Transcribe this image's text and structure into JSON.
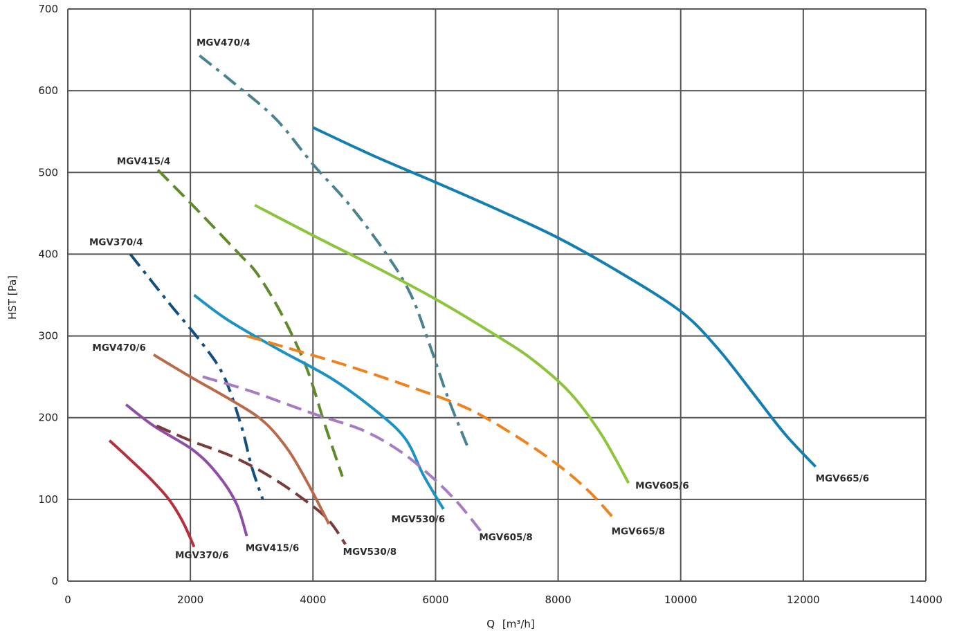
{
  "chart_data": {
    "type": "line",
    "xlabel_prefix": "Q",
    "xlabel_unit": "[m³/h]",
    "ylabel": "HST [Pa]",
    "xlim": [
      0,
      14000
    ],
    "ylim": [
      0,
      700
    ],
    "x_ticks": [
      0,
      2000,
      4000,
      6000,
      8000,
      10000,
      12000,
      14000
    ],
    "y_ticks": [
      0,
      100,
      200,
      300,
      400,
      500,
      600,
      700
    ],
    "grid": true,
    "series": [
      {
        "name": "MGV370/6",
        "color": "#b5303c",
        "dash": "solid",
        "points": [
          [
            680,
            172
          ],
          [
            1000,
            150
          ],
          [
            1350,
            125
          ],
          [
            1650,
            100
          ],
          [
            1880,
            72
          ],
          [
            2060,
            42
          ]
        ]
      },
      {
        "name": "MGV415/6",
        "color": "#8e4ea6",
        "dash": "solid",
        "points": [
          [
            950,
            216
          ],
          [
            1400,
            190
          ],
          [
            2050,
            160
          ],
          [
            2450,
            130
          ],
          [
            2750,
            95
          ],
          [
            2920,
            55
          ]
        ]
      },
      {
        "name": "MGV530/8",
        "color": "#7a3b3b",
        "dash": "dash",
        "points": [
          [
            1450,
            190
          ],
          [
            2000,
            172
          ],
          [
            2700,
            152
          ],
          [
            3300,
            128
          ],
          [
            3850,
            100
          ],
          [
            4250,
            75
          ],
          [
            4530,
            45
          ]
        ]
      },
      {
        "name": "MGV370/4",
        "color": "#134f7d",
        "dash": "dashdot",
        "points": [
          [
            1020,
            400
          ],
          [
            1600,
            345
          ],
          [
            2200,
            290
          ],
          [
            2550,
            250
          ],
          [
            2830,
            190
          ],
          [
            3000,
            140
          ],
          [
            3180,
            100
          ]
        ]
      },
      {
        "name": "MGV470/6",
        "color": "#b86a4b",
        "dash": "solid",
        "points": [
          [
            1400,
            277
          ],
          [
            2000,
            250
          ],
          [
            2700,
            220
          ],
          [
            3200,
            195
          ],
          [
            3600,
            160
          ],
          [
            3950,
            115
          ],
          [
            4260,
            70
          ]
        ]
      },
      {
        "name": "MGV415/4",
        "color": "#5f8a2b",
        "dash": "dash",
        "points": [
          [
            1470,
            503
          ],
          [
            2100,
            455
          ],
          [
            2800,
            400
          ],
          [
            3100,
            375
          ],
          [
            3500,
            325
          ],
          [
            3900,
            260
          ],
          [
            4200,
            190
          ],
          [
            4480,
            128
          ]
        ]
      },
      {
        "name": "MGV530/6",
        "color": "#1c92c2",
        "dash": "solid",
        "points": [
          [
            2060,
            350
          ],
          [
            2600,
            320
          ],
          [
            3400,
            285
          ],
          [
            4300,
            248
          ],
          [
            5000,
            210
          ],
          [
            5500,
            175
          ],
          [
            5800,
            130
          ],
          [
            6130,
            88
          ]
        ]
      },
      {
        "name": "MGV605/8",
        "color": "#a57cc1",
        "dash": "dash",
        "points": [
          [
            2200,
            250
          ],
          [
            3000,
            232
          ],
          [
            4000,
            205
          ],
          [
            4800,
            185
          ],
          [
            5400,
            160
          ],
          [
            5900,
            130
          ],
          [
            6350,
            97
          ],
          [
            6750,
            60
          ]
        ]
      },
      {
        "name": "MGV665/8",
        "color": "#f0821e",
        "dash": "dash",
        "points": [
          [
            2920,
            300
          ],
          [
            3600,
            285
          ],
          [
            4500,
            265
          ],
          [
            5500,
            240
          ],
          [
            6500,
            212
          ],
          [
            7300,
            178
          ],
          [
            8000,
            142
          ],
          [
            8500,
            110
          ],
          [
            8930,
            75
          ]
        ]
      },
      {
        "name": "MGV470/4",
        "color": "#4a8290",
        "dash": "dashdot",
        "points": [
          [
            2150,
            643
          ],
          [
            2700,
            610
          ],
          [
            3400,
            565
          ],
          [
            4000,
            510
          ],
          [
            4600,
            460
          ],
          [
            5200,
            400
          ],
          [
            5600,
            350
          ],
          [
            5900,
            290
          ],
          [
            6200,
            225
          ],
          [
            6520,
            165
          ]
        ]
      },
      {
        "name": "MGV605/6",
        "color": "#8cc43c",
        "dash": "solid",
        "points": [
          [
            3050,
            460
          ],
          [
            4000,
            423
          ],
          [
            5000,
            385
          ],
          [
            6000,
            345
          ],
          [
            7000,
            300
          ],
          [
            7600,
            270
          ],
          [
            8200,
            230
          ],
          [
            8700,
            180
          ],
          [
            9150,
            120
          ]
        ]
      },
      {
        "name": "MGV665/6",
        "color": "#137fb0",
        "dash": "solid",
        "points": [
          [
            4000,
            555
          ],
          [
            5000,
            520
          ],
          [
            6000,
            488
          ],
          [
            7000,
            455
          ],
          [
            8000,
            420
          ],
          [
            9000,
            378
          ],
          [
            10000,
            330
          ],
          [
            10600,
            285
          ],
          [
            11200,
            228
          ],
          [
            11700,
            180
          ],
          [
            12200,
            140
          ]
        ]
      }
    ],
    "labels": [
      {
        "text": "MGV470/4",
        "x": 2100,
        "y": 655
      },
      {
        "text": "MGV415/4",
        "x": 800,
        "y": 510
      },
      {
        "text": "MGV370/4",
        "x": 350,
        "y": 411
      },
      {
        "text": "MGV470/6",
        "x": 400,
        "y": 282
      },
      {
        "text": "MGV370/6",
        "x": 1750,
        "y": 28
      },
      {
        "text": "MGV415/6",
        "x": 2900,
        "y": 37
      },
      {
        "text": "MGV530/8",
        "x": 4490,
        "y": 32
      },
      {
        "text": "MGV530/6",
        "x": 5280,
        "y": 72
      },
      {
        "text": "MGV605/8",
        "x": 6710,
        "y": 50
      },
      {
        "text": "MGV665/8",
        "x": 8870,
        "y": 57
      },
      {
        "text": "MGV605/6",
        "x": 9260,
        "y": 113
      },
      {
        "text": "MGV665/6",
        "x": 12200,
        "y": 122
      }
    ]
  }
}
